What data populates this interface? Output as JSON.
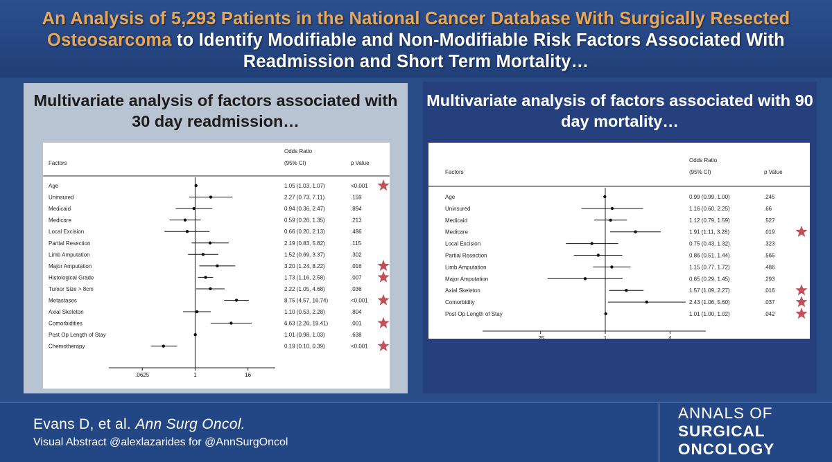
{
  "header": {
    "title_highlight": "An Analysis of 5,293 Patients in the National Cancer Database With Surgically Resected Osteosarcoma",
    "title_rest": " to Identify Modifiable and Non-Modifiable Risk Factors Associated With Readmission and Short Term Mortality…"
  },
  "colors": {
    "highlight": "#e8a85a",
    "star": "#c0505a",
    "header_bg": "#213f78",
    "right_panel_bg": "#263f7d",
    "left_panel_bg": "#b9c4d2"
  },
  "chart_data": [
    {
      "type": "table",
      "title": "Multivariate analysis of factors associated with 30 day readmission…",
      "columns": {
        "factors": "Factors",
        "or_line1": "Odds Ratio",
        "or_line2": "(95% CI)",
        "p": "p Value"
      },
      "scale": "log2",
      "xlim": [
        0.025,
        60
      ],
      "ticks": [
        {
          "value": 0.0625,
          "label": ".0625"
        },
        {
          "value": 1,
          "label": "1"
        },
        {
          "value": 16,
          "label": "16"
        }
      ],
      "reference_line": 1,
      "rows": [
        {
          "factor": "Age",
          "or": 1.05,
          "lo": 1.03,
          "hi": 1.07,
          "ci_text": "1.05 (1.03, 1.07)",
          "p": "<0.001",
          "star": true
        },
        {
          "factor": "Uninsured",
          "or": 2.27,
          "lo": 0.73,
          "hi": 7.11,
          "ci_text": "2.27 (0.73, 7.11)",
          "p": ".159",
          "star": false
        },
        {
          "factor": "Medicaid",
          "or": 0.94,
          "lo": 0.36,
          "hi": 2.47,
          "ci_text": "0.94 (0.36, 2.47)",
          "p": ".894",
          "star": false
        },
        {
          "factor": "Medicare",
          "or": 0.59,
          "lo": 0.26,
          "hi": 1.35,
          "ci_text": "0.59 (0.26, 1.35)",
          "p": ".213",
          "star": false
        },
        {
          "factor": "Local Excision",
          "or": 0.66,
          "lo": 0.2,
          "hi": 2.13,
          "ci_text": "0.66 (0.20, 2.13)",
          "p": ".486",
          "star": false
        },
        {
          "factor": "Partial Resection",
          "or": 2.19,
          "lo": 0.83,
          "hi": 5.82,
          "ci_text": "2.19 (0.83, 5.82)",
          "p": ".115",
          "star": false
        },
        {
          "factor": "Limb Amputation",
          "or": 1.52,
          "lo": 0.69,
          "hi": 3.37,
          "ci_text": "1.52 (0.69, 3.37)",
          "p": ".302",
          "star": false
        },
        {
          "factor": "Major Amputation",
          "or": 3.2,
          "lo": 1.24,
          "hi": 8.22,
          "ci_text": "3.20 (1.24, 8.22)",
          "p": ".016",
          "star": true
        },
        {
          "factor": "Histological Grade",
          "or": 1.73,
          "lo": 1.16,
          "hi": 2.58,
          "ci_text": "1.73 (1.16, 2.58)",
          "p": ".007",
          "star": true
        },
        {
          "factor": "Tumor Size > 8cm",
          "or": 2.22,
          "lo": 1.05,
          "hi": 4.68,
          "ci_text": "2.22 (1.05, 4.68)",
          "p": ".036",
          "star": false
        },
        {
          "factor": "Metastases",
          "or": 8.75,
          "lo": 4.57,
          "hi": 16.74,
          "ci_text": "8.75 (4.57, 16.74)",
          "p": "<0.001",
          "star": true
        },
        {
          "factor": "Axial Skeleton",
          "or": 1.1,
          "lo": 0.53,
          "hi": 2.28,
          "ci_text": "1.10 (0.53, 2.28)",
          "p": ".804",
          "star": false
        },
        {
          "factor": "Comorbidities",
          "or": 6.63,
          "lo": 2.26,
          "hi": 19.41,
          "ci_text": "6.63 (2.26, 19.41)",
          "p": ".001",
          "star": true
        },
        {
          "factor": "Post Op Length of Stay",
          "or": 1.01,
          "lo": 0.98,
          "hi": 1.03,
          "ci_text": "1.01 (0.98, 1.03)",
          "p": ".638",
          "star": false
        },
        {
          "factor": "Chemotherapy",
          "or": 0.19,
          "lo": 0.1,
          "hi": 0.39,
          "ci_text": "0.19 (0.10, 0.39)",
          "p": "<0.001",
          "star": true
        }
      ]
    },
    {
      "type": "table",
      "title": "Multivariate analysis of factors associated with 90 day mortality…",
      "columns": {
        "factors": "Factors",
        "or_line1": "Odds Ratio",
        "or_line2": "(95% CI)",
        "p": "p Value"
      },
      "scale": "log2",
      "xlim": [
        0.1,
        10
      ],
      "ticks": [
        {
          "value": 0.25,
          "label": ".25"
        },
        {
          "value": 1,
          "label": "1"
        },
        {
          "value": 4,
          "label": "4"
        }
      ],
      "reference_line": 1,
      "rows": [
        {
          "factor": "Age",
          "or": 0.99,
          "lo": 0.99,
          "hi": 1.0,
          "ci_text": "0.99 (0.99, 1.00)",
          "p": ".245",
          "star": false
        },
        {
          "factor": "Uninsured",
          "or": 1.16,
          "lo": 0.6,
          "hi": 2.25,
          "ci_text": "1.16 (0.60, 2.25)",
          "p": ".66",
          "star": false
        },
        {
          "factor": "Medicaid",
          "or": 1.12,
          "lo": 0.79,
          "hi": 1.59,
          "ci_text": "1.12 (0.79, 1.59)",
          "p": ".527",
          "star": false
        },
        {
          "factor": "Medicare",
          "or": 1.91,
          "lo": 1.11,
          "hi": 3.28,
          "ci_text": "1.91 (1.11, 3.28)",
          "p": ".019",
          "star": true
        },
        {
          "factor": "Local Excision",
          "or": 0.75,
          "lo": 0.43,
          "hi": 1.32,
          "ci_text": "0.75 (0.43, 1.32)",
          "p": ".323",
          "star": false
        },
        {
          "factor": "Partial Resection",
          "or": 0.86,
          "lo": 0.51,
          "hi": 1.44,
          "ci_text": "0.86 (0.51, 1.44)",
          "p": ".565",
          "star": false
        },
        {
          "factor": "Limb Amputation",
          "or": 1.15,
          "lo": 0.77,
          "hi": 1.72,
          "ci_text": "1.15 (0.77, 1.72)",
          "p": ".486",
          "star": false
        },
        {
          "factor": "Major Amputation",
          "or": 0.65,
          "lo": 0.29,
          "hi": 1.45,
          "ci_text": "0.65 (0.29, 1.45)",
          "p": ".293",
          "star": false
        },
        {
          "factor": "Axial Skeleton",
          "or": 1.57,
          "lo": 1.09,
          "hi": 2.27,
          "ci_text": "1.57 (1.09, 2.27)",
          "p": ".016",
          "star": true
        },
        {
          "factor": "Comorbidity",
          "or": 2.43,
          "lo": 1.06,
          "hi": 5.6,
          "ci_text": "2.43 (1.06, 5.60)",
          "p": ".037",
          "star": true
        },
        {
          "factor": "Post Op Length of Stay",
          "or": 1.01,
          "lo": 1.0,
          "hi": 1.02,
          "ci_text": "1.01 (1.00, 1.02)",
          "p": ".042",
          "star": true
        }
      ]
    }
  ],
  "footer": {
    "citation_authors": "Evans D, et al. ",
    "citation_journal": "Ann Surg Oncol.",
    "credit": "Visual Abstract @alexlazarides for @AnnSurgOncol",
    "logo_line1": "ANNALS OF",
    "logo_line2": "SURGICAL",
    "logo_line3": "ONCOLOGY"
  }
}
